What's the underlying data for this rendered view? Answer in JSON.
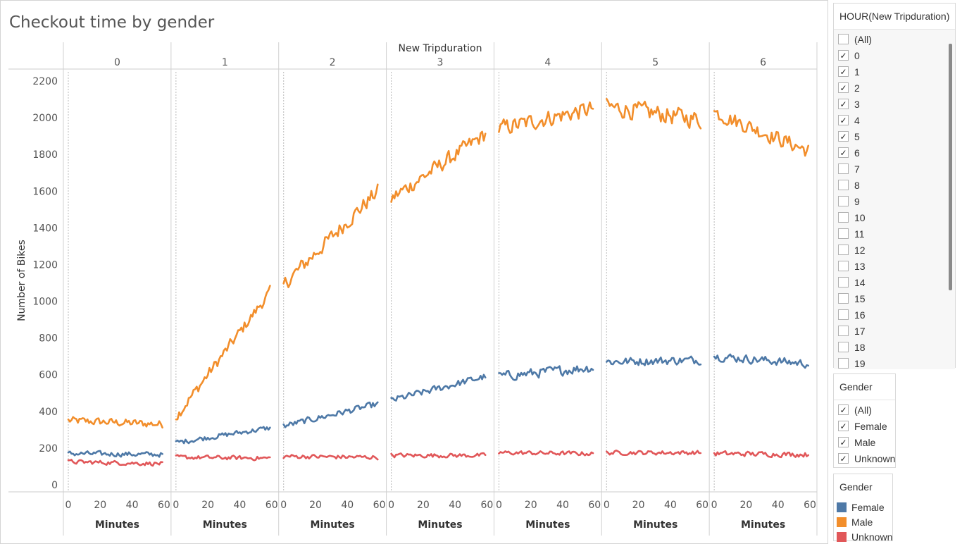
{
  "chart_title": "Checkout time by gender",
  "chart_data": {
    "type": "line",
    "title": "Checkout time by gender",
    "column_header": "New Tripduration",
    "panels": [
      "0",
      "1",
      "2",
      "3",
      "4",
      "5",
      "6"
    ],
    "xlabel": "Minutes",
    "ylabel": "Number of Bikes",
    "x_ticks": [
      "0",
      "20",
      "40",
      "60"
    ],
    "xlim": [
      0,
      60
    ],
    "y_ticks": [
      "0",
      "200",
      "400",
      "600",
      "800",
      "1000",
      "1200",
      "1400",
      "1600",
      "1800",
      "2000",
      "2200"
    ],
    "ylim": [
      0,
      2200
    ],
    "series": [
      {
        "name": "Male",
        "color": "#f28e2b",
        "segments": [
          {
            "panel": "0",
            "start": 350,
            "end": 330,
            "noise": 28
          },
          {
            "panel": "1",
            "start": 370,
            "end": 1050,
            "noise": 40
          },
          {
            "panel": "2",
            "start": 1090,
            "end": 1600,
            "noise": 55
          },
          {
            "panel": "3",
            "start": 1560,
            "end": 1910,
            "noise": 55
          },
          {
            "panel": "4",
            "start": 1940,
            "end": 2050,
            "noise": 60
          },
          {
            "panel": "5",
            "start": 2060,
            "end": 1990,
            "noise": 65
          },
          {
            "panel": "6",
            "start": 2030,
            "end": 1820,
            "noise": 55
          }
        ]
      },
      {
        "name": "Female",
        "color": "#4e79a7",
        "segments": [
          {
            "panel": "0",
            "start": 170,
            "end": 165,
            "noise": 18
          },
          {
            "panel": "1",
            "start": 230,
            "end": 310,
            "noise": 18
          },
          {
            "panel": "2",
            "start": 320,
            "end": 440,
            "noise": 22
          },
          {
            "panel": "3",
            "start": 460,
            "end": 590,
            "noise": 25
          },
          {
            "panel": "4",
            "start": 590,
            "end": 640,
            "noise": 35
          },
          {
            "panel": "5",
            "start": 670,
            "end": 680,
            "noise": 30
          },
          {
            "panel": "6",
            "start": 700,
            "end": 660,
            "noise": 30
          }
        ]
      },
      {
        "name": "Unknown",
        "color": "#e15759",
        "segments": [
          {
            "panel": "0",
            "start": 125,
            "end": 115,
            "noise": 15
          },
          {
            "panel": "1",
            "start": 150,
            "end": 145,
            "noise": 15
          },
          {
            "panel": "2",
            "start": 155,
            "end": 150,
            "noise": 15
          },
          {
            "panel": "3",
            "start": 160,
            "end": 160,
            "noise": 15
          },
          {
            "panel": "4",
            "start": 175,
            "end": 170,
            "noise": 15
          },
          {
            "panel": "5",
            "start": 175,
            "end": 175,
            "noise": 15
          },
          {
            "panel": "6",
            "start": 170,
            "end": 165,
            "noise": 18
          }
        ]
      }
    ]
  },
  "filter_hour": {
    "title": "HOUR(New Tripduration)",
    "items": [
      {
        "label": "(All)",
        "checked": false
      },
      {
        "label": "0",
        "checked": true
      },
      {
        "label": "1",
        "checked": true
      },
      {
        "label": "2",
        "checked": true
      },
      {
        "label": "3",
        "checked": true
      },
      {
        "label": "4",
        "checked": true
      },
      {
        "label": "5",
        "checked": true
      },
      {
        "label": "6",
        "checked": true
      },
      {
        "label": "7",
        "checked": false
      },
      {
        "label": "8",
        "checked": false
      },
      {
        "label": "9",
        "checked": false
      },
      {
        "label": "10",
        "checked": false
      },
      {
        "label": "11",
        "checked": false
      },
      {
        "label": "12",
        "checked": false
      },
      {
        "label": "13",
        "checked": false
      },
      {
        "label": "14",
        "checked": false
      },
      {
        "label": "15",
        "checked": false
      },
      {
        "label": "16",
        "checked": false
      },
      {
        "label": "17",
        "checked": false
      },
      {
        "label": "18",
        "checked": false
      },
      {
        "label": "19",
        "checked": false
      }
    ]
  },
  "filter_gender": {
    "title": "Gender",
    "items": [
      {
        "label": "(All)",
        "checked": true
      },
      {
        "label": "Female",
        "checked": true
      },
      {
        "label": "Male",
        "checked": true
      },
      {
        "label": "Unknown",
        "checked": true
      }
    ]
  },
  "legend": {
    "title": "Gender",
    "items": [
      {
        "label": "Female",
        "color": "#4e79a7"
      },
      {
        "label": "Male",
        "color": "#f28e2b"
      },
      {
        "label": "Unknown",
        "color": "#e15759"
      }
    ]
  }
}
